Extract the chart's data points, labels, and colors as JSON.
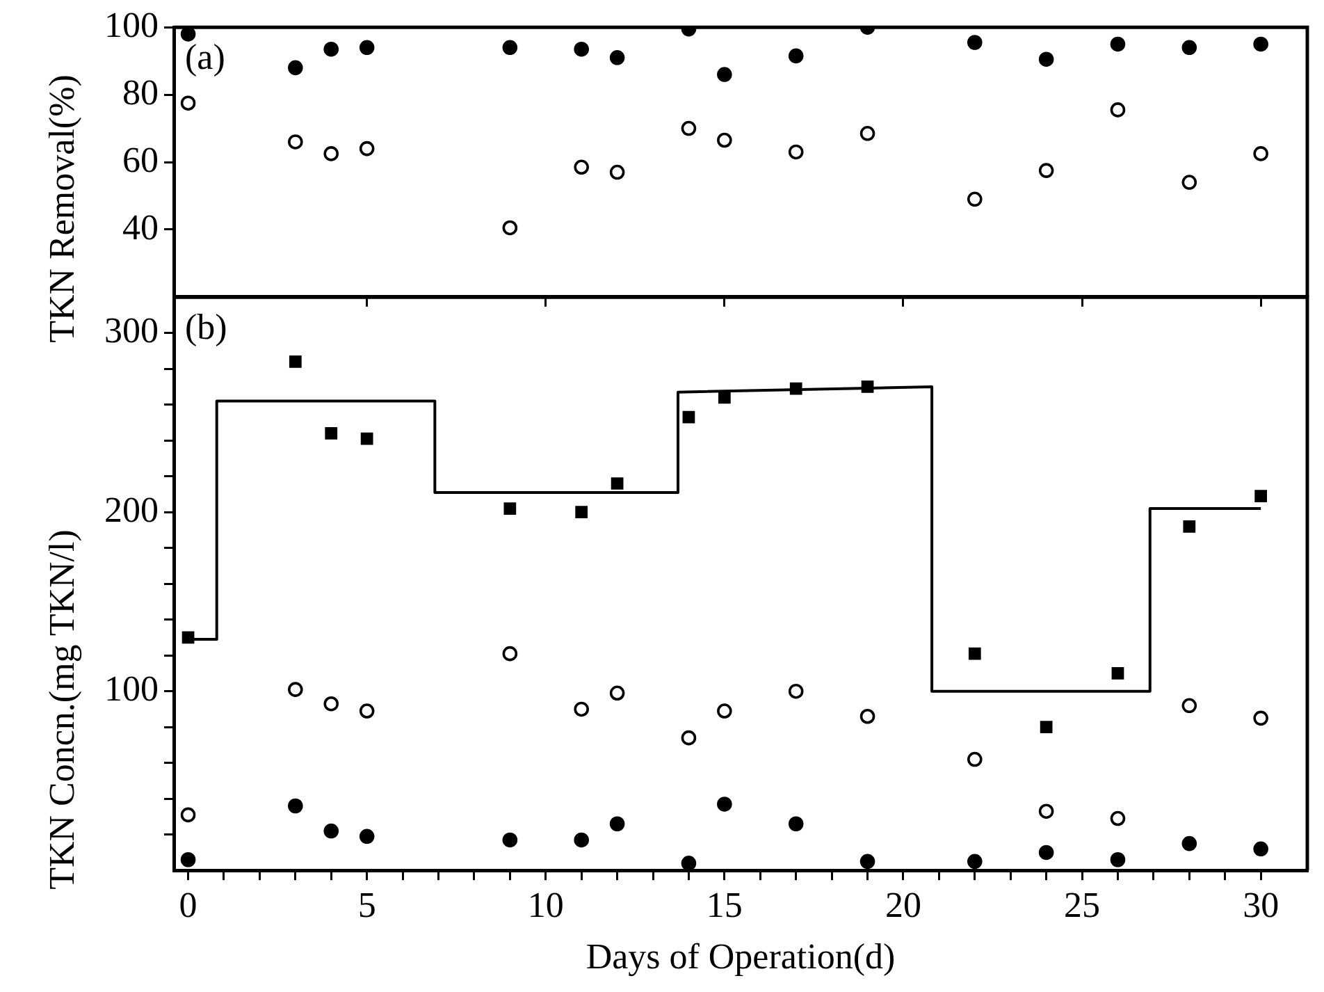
{
  "chart_data": [
    {
      "type": "scatter",
      "ylabel": "TKN Removal(%)",
      "annotations": [
        "(a)"
      ],
      "xlim": [
        -0.4,
        31.3
      ],
      "ylim": [
        20,
        100
      ],
      "yticks": [
        40,
        60,
        80,
        100
      ],
      "xticks": [
        {
          "value": 5,
          "label": null
        },
        {
          "value": 10,
          "label": null
        },
        {
          "value": 15,
          "label": null
        },
        {
          "value": 20,
          "label": null
        },
        {
          "value": 25,
          "label": null
        },
        {
          "value": 30,
          "label": null
        }
      ],
      "tick_labels": "y",
      "grid": false,
      "legend": false,
      "series": [
        {
          "color": "#000000",
          "marker": "circle",
          "x": [
            0,
            3,
            4,
            5,
            9,
            11,
            12,
            14,
            15,
            17,
            19,
            22,
            24,
            26,
            28,
            30
          ],
          "values": [
            98,
            88,
            93.5,
            94,
            94,
            93.5,
            91,
            99.5,
            86,
            91.5,
            100,
            95.5,
            90.5,
            95,
            94,
            95
          ]
        },
        {
          "color": "#000000",
          "marker": "circle-open",
          "x": [
            0,
            3,
            4,
            5,
            9,
            11,
            12,
            14,
            15,
            17,
            19,
            22,
            24,
            26,
            28,
            30
          ],
          "values": [
            77.5,
            66,
            62.5,
            64,
            40.5,
            58.5,
            57,
            70,
            66.5,
            63,
            68.5,
            49,
            57.5,
            75.5,
            54,
            62.5
          ]
        }
      ]
    },
    {
      "type": "scatter",
      "xlabel": "Days of Operation(d)",
      "ylabel": "TKN Concn.(mg TKN/l)",
      "annotations": [
        "(b)"
      ],
      "xlim": [
        -0.4,
        31.3
      ],
      "ylim": [
        0,
        320
      ],
      "yticks": [
        {
          "value": 20,
          "label": null
        },
        {
          "value": 40,
          "label": null
        },
        {
          "value": 60,
          "label": null
        },
        {
          "value": 80,
          "label": null
        },
        100,
        {
          "value": 120,
          "label": null
        },
        {
          "value": 140,
          "label": null
        },
        {
          "value": 160,
          "label": null
        },
        {
          "value": 180,
          "label": null
        },
        200,
        {
          "value": 220,
          "label": null
        },
        {
          "value": 240,
          "label": null
        },
        {
          "value": 260,
          "label": null
        },
        {
          "value": 280,
          "label": null
        },
        300
      ],
      "xticks": [
        0,
        {
          "value": 1,
          "label": null
        },
        {
          "value": 2,
          "label": null
        },
        {
          "value": 3,
          "label": null
        },
        {
          "value": 4,
          "label": null
        },
        5,
        {
          "value": 6,
          "label": null
        },
        {
          "value": 7,
          "label": null
        },
        {
          "value": 8,
          "label": null
        },
        {
          "value": 9,
          "label": null
        },
        10,
        {
          "value": 11,
          "label": null
        },
        {
          "value": 12,
          "label": null
        },
        {
          "value": 13,
          "label": null
        },
        {
          "value": 14,
          "label": null
        },
        15,
        {
          "value": 16,
          "label": null
        },
        {
          "value": 17,
          "label": null
        },
        {
          "value": 18,
          "label": null
        },
        {
          "value": 19,
          "label": null
        },
        20,
        {
          "value": 21,
          "label": null
        },
        {
          "value": 22,
          "label": null
        },
        {
          "value": 23,
          "label": null
        },
        {
          "value": 24,
          "label": null
        },
        25,
        {
          "value": 26,
          "label": null
        },
        {
          "value": 27,
          "label": null
        },
        {
          "value": 28,
          "label": null
        },
        {
          "value": 29,
          "label": null
        },
        30
      ],
      "grid": false,
      "legend": false,
      "series": [
        {
          "type": "line",
          "color": "#000000",
          "marker": "none",
          "x": [
            0,
            0.8,
            0.8,
            6.9,
            6.9,
            13.7,
            13.7,
            20.8,
            20.8,
            26.9,
            26.9,
            30
          ],
          "values": [
            129,
            129,
            262,
            262,
            211,
            211,
            267,
            270,
            100,
            100,
            202,
            202
          ]
        },
        {
          "color": "#000000",
          "marker": "square",
          "x": [
            0,
            3,
            4,
            5,
            9,
            11,
            12,
            14,
            15,
            17,
            19,
            22,
            24,
            26,
            28,
            30
          ],
          "values": [
            130,
            284,
            244,
            241,
            202,
            200,
            216,
            253,
            264,
            269,
            270,
            121,
            80,
            110,
            192,
            209
          ]
        },
        {
          "color": "#000000",
          "marker": "circle-open",
          "x": [
            0,
            3,
            4,
            5,
            9,
            11,
            12,
            14,
            15,
            17,
            19,
            22,
            24,
            26,
            28,
            30
          ],
          "values": [
            31,
            101,
            93,
            89,
            121,
            90,
            99,
            74,
            89,
            100,
            86,
            62,
            33,
            29,
            92,
            85
          ]
        },
        {
          "color": "#000000",
          "marker": "circle",
          "x": [
            0,
            3,
            4,
            5,
            9,
            11,
            12,
            14,
            15,
            17,
            19,
            22,
            24,
            26,
            28,
            30
          ],
          "values": [
            6,
            36,
            22,
            19,
            17,
            17,
            26,
            4,
            37,
            26,
            5,
            5,
            10,
            6,
            15,
            12
          ]
        }
      ]
    }
  ]
}
